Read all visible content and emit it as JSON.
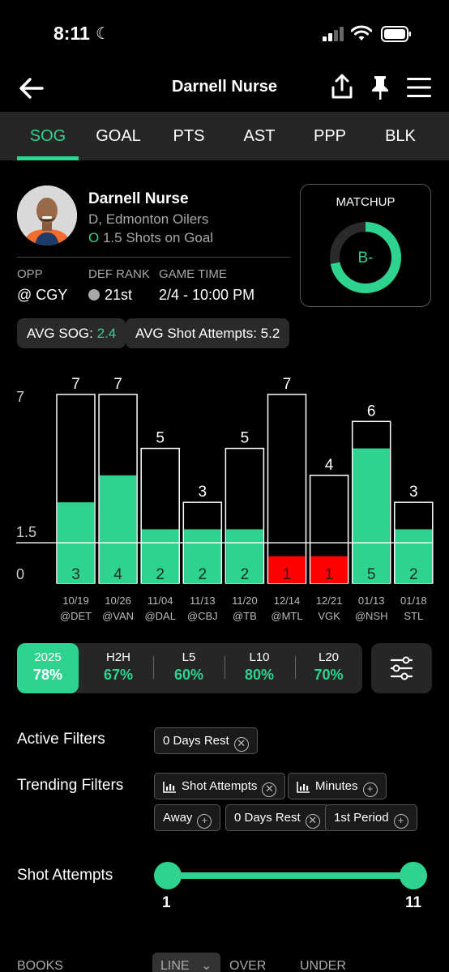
{
  "status_bar": {
    "time": "8:11"
  },
  "header": {
    "title": "Darnell Nurse"
  },
  "tabs": [
    {
      "label": "SOG",
      "active": true
    },
    {
      "label": "GOAL"
    },
    {
      "label": "PTS"
    },
    {
      "label": "AST"
    },
    {
      "label": "PPP"
    },
    {
      "label": "BLK"
    }
  ],
  "player": {
    "name": "Darnell Nurse",
    "team": "D, Edmonton Oilers",
    "line_prefix": "O",
    "line": "1.5 Shots on Goal"
  },
  "game": {
    "opp_label": "OPP",
    "opp_value": "@ CGY",
    "def_rank_label": "DEF RANK",
    "def_rank_value": "21st",
    "time_label": "GAME TIME",
    "time_value": "2/4 - 10:00 PM"
  },
  "matchup": {
    "label": "MATCHUP",
    "grade": "B-",
    "fill_fraction": 0.72,
    "accent": "#2ed38f"
  },
  "averages": {
    "sog_label": "AVG SOG:",
    "sog_value": "2.4",
    "attempts_label": "AVG Shot Attempts:",
    "attempts_value": "5.2"
  },
  "chart_data": {
    "type": "bar",
    "ytick_labels": [
      "7",
      "1.5",
      "0"
    ],
    "ylim": [
      0,
      7
    ],
    "line_value": 1.5,
    "categories": [
      "10/19",
      "10/26",
      "11/04",
      "11/13",
      "11/20",
      "12/14",
      "12/21",
      "01/13",
      "01/18"
    ],
    "opponents": [
      "@DET",
      "@VAN",
      "@DAL",
      "@CBJ",
      "@TB",
      "@MTL",
      "VGK",
      "@NSH",
      "STL"
    ],
    "series": [
      {
        "values": [
          7,
          7,
          5,
          3,
          5,
          7,
          4,
          6,
          3
        ]
      },
      {
        "values": [
          3,
          4,
          2,
          2,
          2,
          1,
          1,
          5,
          2
        ]
      }
    ],
    "colors": {
      "over": "#2ed38f",
      "under": "#ff0000",
      "outline": "#ffffff"
    }
  },
  "splits": [
    {
      "label": "2025",
      "value": "78%",
      "active": true
    },
    {
      "label": "H2H",
      "value": "67%"
    },
    {
      "label": "L5",
      "value": "60%"
    },
    {
      "label": "L10",
      "value": "80%"
    },
    {
      "label": "L20",
      "value": "70%"
    }
  ],
  "filters": {
    "active_label": "Active Filters",
    "active": [
      "0 Days Rest"
    ],
    "trending_label": "Trending Filters",
    "trending": [
      {
        "label": "Shot Attempts",
        "icon": "bar-chart-icon",
        "state": "remove"
      },
      {
        "label": "Minutes",
        "icon": "bar-chart-icon",
        "state": "add"
      },
      {
        "label": "Away",
        "state": "add"
      },
      {
        "label": "0 Days Rest",
        "state": "remove"
      },
      {
        "label": "1st Period",
        "state": "add"
      }
    ]
  },
  "slider": {
    "label": "Shot Attempts",
    "min": "1",
    "max": "11"
  },
  "table_header": {
    "books": "BOOKS",
    "line": "LINE",
    "over": "OVER",
    "under": "UNDER"
  }
}
